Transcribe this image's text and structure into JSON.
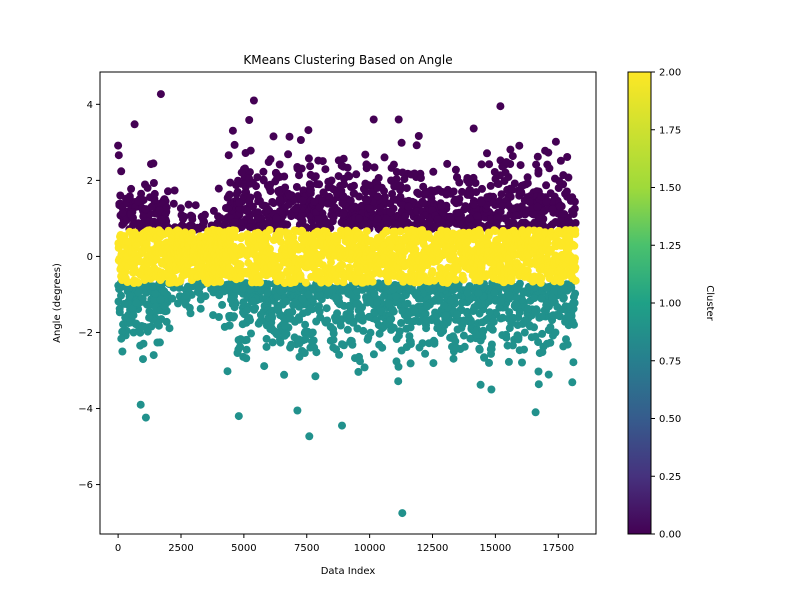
{
  "chart_data": {
    "type": "scatter",
    "title": "KMeans Clustering Based on Angle",
    "xlabel": "Data Index",
    "ylabel": "Angle (degrees)",
    "xlim": [
      -720,
      19000
    ],
    "ylim": [
      -7.3,
      4.85
    ],
    "xticks": [
      0,
      2500,
      5000,
      7500,
      10000,
      12500,
      15000,
      17500
    ],
    "xtick_labels": [
      "0",
      "2500",
      "5000",
      "7500",
      "10000",
      "12500",
      "15000",
      "17500"
    ],
    "yticks": [
      -6,
      -4,
      -2,
      0,
      2,
      4
    ],
    "ytick_labels": [
      "−6",
      "−4",
      "−2",
      "0",
      "2",
      "4"
    ],
    "colormap": "viridis",
    "colorbar": {
      "label": "Cluster",
      "range": [
        0,
        2
      ],
      "ticks": [
        "0.00",
        "0.25",
        "0.50",
        "0.75",
        "1.00",
        "1.25",
        "1.50",
        "1.75",
        "2.00"
      ]
    },
    "clusters": [
      {
        "cluster": 0,
        "color": "#440154",
        "angle_range": [
          0.7,
          4.3
        ]
      },
      {
        "cluster": 1,
        "color": "#21918c",
        "angle_range": [
          -6.7,
          -0.7
        ]
      },
      {
        "cluster": 2,
        "color": "#fde725",
        "angle_range": [
          -0.7,
          0.7
        ]
      }
    ],
    "x_range_of_points": [
      0,
      18200
    ],
    "notable_points": [
      {
        "x": 1700,
        "y": 4.27,
        "cluster": 0
      },
      {
        "x": 5400,
        "y": 4.1,
        "cluster": 0
      },
      {
        "x": 15200,
        "y": 3.95,
        "cluster": 0
      },
      {
        "x": 7600,
        "y": -4.73,
        "cluster": 1
      },
      {
        "x": 4800,
        "y": -4.2,
        "cluster": 1
      },
      {
        "x": 8900,
        "y": -4.45,
        "cluster": 1
      },
      {
        "x": 11300,
        "y": -6.75,
        "cluster": 1
      },
      {
        "x": 16600,
        "y": -4.1,
        "cluster": 1
      },
      {
        "x": 900,
        "y": -3.9,
        "cluster": 1
      }
    ]
  }
}
